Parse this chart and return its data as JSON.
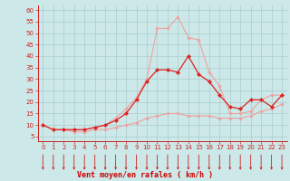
{
  "xlabel": "Vent moyen/en rafales ( km/h )",
  "background_color": "#cce8e8",
  "grid_color": "#aacccc",
  "x_ticks": [
    0,
    1,
    2,
    3,
    4,
    5,
    6,
    7,
    8,
    9,
    10,
    11,
    12,
    13,
    14,
    15,
    16,
    17,
    18,
    19,
    20,
    21,
    22,
    23
  ],
  "y_ticks": [
    5,
    10,
    15,
    20,
    25,
    30,
    35,
    40,
    45,
    50,
    55,
    60
  ],
  "ylim": [
    3,
    62
  ],
  "xlim": [
    -0.5,
    23.5
  ],
  "line1_y": [
    10,
    8,
    8,
    7,
    7,
    8,
    8,
    9,
    10,
    11,
    13,
    14,
    15,
    15,
    14,
    14,
    14,
    13,
    13,
    13,
    14,
    16,
    17,
    19
  ],
  "line2_y": [
    10,
    8,
    8,
    8,
    8,
    9,
    10,
    12,
    15,
    21,
    29,
    34,
    34,
    33,
    40,
    32,
    29,
    23,
    18,
    17,
    21,
    21,
    18,
    23
  ],
  "line3_y": [
    10,
    8,
    8,
    8,
    8,
    9,
    10,
    13,
    17,
    22,
    30,
    52,
    52,
    57,
    48,
    47,
    33,
    27,
    15,
    15,
    16,
    21,
    23,
    23
  ],
  "line1_color": "#f0a0a0",
  "line2_color": "#dd2222",
  "line3_color": "#f0a0a0",
  "arrow_color": "#cc2222",
  "xlabel_color": "#cc0000",
  "tick_color": "#cc2222",
  "axis_color": "#cc2222",
  "tick_fontsize": 5.0,
  "xlabel_fontsize": 6.0
}
